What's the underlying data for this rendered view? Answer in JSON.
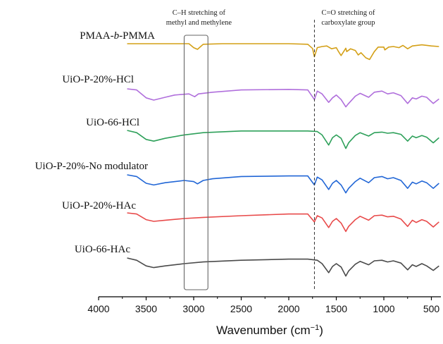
{
  "chart_data": {
    "type": "line",
    "xlabel_main": "Wavenumber (cm",
    "xlabel_sup": "−1",
    "xlabel_end": ")",
    "xlim": [
      4000,
      400
    ],
    "x_reversed": true,
    "xticks": [
      4000,
      3500,
      3000,
      2500,
      2000,
      1500,
      1000,
      500
    ],
    "y_axis_shown": false,
    "annotations": [
      {
        "lines": [
          "C–H stretching of",
          "methyl and methylene"
        ],
        "range": [
          3100,
          2850
        ],
        "shape": "rectangle"
      },
      {
        "lines": [
          "C=O stretching of",
          "carboxylate group"
        ],
        "at": 1730,
        "shape": "dashed-line"
      }
    ],
    "series": [
      {
        "name": "PMAA-b-PMMA",
        "name_parts": [
          "PMAA-",
          "b",
          "-PMMA"
        ],
        "color": "#d4a017",
        "points": [
          [
            3700,
            0.0
          ],
          [
            3600,
            0.0
          ],
          [
            3200,
            0.0
          ],
          [
            3050,
            0.0
          ],
          [
            3000,
            0.7
          ],
          [
            2960,
            1.0
          ],
          [
            2900,
            0.1
          ],
          [
            2700,
            0.0
          ],
          [
            2000,
            0.0
          ],
          [
            1800,
            0.1
          ],
          [
            1750,
            0.85
          ],
          [
            1730,
            2.3
          ],
          [
            1700,
            0.7
          ],
          [
            1650,
            0.5
          ],
          [
            1600,
            0.4
          ],
          [
            1550,
            0.9
          ],
          [
            1500,
            0.7
          ],
          [
            1480,
            1.3
          ],
          [
            1450,
            2.1
          ],
          [
            1400,
            0.8
          ],
          [
            1390,
            1.4
          ],
          [
            1350,
            0.9
          ],
          [
            1300,
            1.2
          ],
          [
            1270,
            2.0
          ],
          [
            1240,
            1.6
          ],
          [
            1190,
            2.5
          ],
          [
            1150,
            2.8
          ],
          [
            1100,
            1.4
          ],
          [
            1060,
            0.6
          ],
          [
            1000,
            0.6
          ],
          [
            990,
            1.1
          ],
          [
            950,
            0.6
          ],
          [
            900,
            0.5
          ],
          [
            840,
            0.7
          ],
          [
            800,
            0.3
          ],
          [
            750,
            0.9
          ],
          [
            700,
            0.4
          ],
          [
            600,
            0.2
          ],
          [
            500,
            0.4
          ],
          [
            420,
            0.5
          ]
        ]
      },
      {
        "name": "UiO-P-20%-HCl",
        "color": "#b06fdc",
        "points": [
          [
            3700,
            0.0
          ],
          [
            3600,
            0.2
          ],
          [
            3500,
            1.6
          ],
          [
            3420,
            2.0
          ],
          [
            3300,
            1.5
          ],
          [
            3200,
            1.1
          ],
          [
            3050,
            0.9
          ],
          [
            2990,
            1.4
          ],
          [
            2950,
            0.9
          ],
          [
            2800,
            0.6
          ],
          [
            2500,
            0.2
          ],
          [
            2000,
            0.1
          ],
          [
            1800,
            0.2
          ],
          [
            1730,
            1.9
          ],
          [
            1700,
            0.4
          ],
          [
            1650,
            0.9
          ],
          [
            1580,
            2.4
          ],
          [
            1540,
            1.6
          ],
          [
            1500,
            1.1
          ],
          [
            1450,
            1.9
          ],
          [
            1400,
            3.2
          ],
          [
            1370,
            2.6
          ],
          [
            1300,
            1.3
          ],
          [
            1250,
            0.8
          ],
          [
            1160,
            1.5
          ],
          [
            1100,
            0.6
          ],
          [
            1020,
            0.4
          ],
          [
            960,
            0.9
          ],
          [
            900,
            0.7
          ],
          [
            820,
            1.2
          ],
          [
            750,
            2.6
          ],
          [
            700,
            1.6
          ],
          [
            660,
            1.8
          ],
          [
            600,
            1.3
          ],
          [
            550,
            1.5
          ],
          [
            480,
            2.6
          ],
          [
            420,
            1.8
          ]
        ]
      },
      {
        "name": "UiO-66-HCl",
        "color": "#2ea05a",
        "points": [
          [
            3700,
            0.0
          ],
          [
            3600,
            0.4
          ],
          [
            3500,
            1.6
          ],
          [
            3420,
            1.9
          ],
          [
            3300,
            1.4
          ],
          [
            3100,
            0.8
          ],
          [
            2900,
            0.4
          ],
          [
            2500,
            0.1
          ],
          [
            2000,
            0.1
          ],
          [
            1800,
            0.1
          ],
          [
            1700,
            0.2
          ],
          [
            1650,
            0.8
          ],
          [
            1580,
            2.6
          ],
          [
            1540,
            1.3
          ],
          [
            1500,
            0.8
          ],
          [
            1450,
            1.4
          ],
          [
            1400,
            3.2
          ],
          [
            1370,
            2.2
          ],
          [
            1300,
            0.9
          ],
          [
            1250,
            0.4
          ],
          [
            1160,
            1.0
          ],
          [
            1100,
            0.4
          ],
          [
            1020,
            0.3
          ],
          [
            960,
            0.5
          ],
          [
            900,
            0.4
          ],
          [
            820,
            0.7
          ],
          [
            750,
            1.9
          ],
          [
            700,
            1.0
          ],
          [
            660,
            1.3
          ],
          [
            600,
            0.9
          ],
          [
            550,
            1.2
          ],
          [
            480,
            2.2
          ],
          [
            420,
            1.3
          ]
        ]
      },
      {
        "name": "UiO-P-20%-No modulator",
        "color": "#2166d6",
        "points": [
          [
            3700,
            0.0
          ],
          [
            3600,
            0.3
          ],
          [
            3500,
            1.5
          ],
          [
            3420,
            1.8
          ],
          [
            3300,
            1.4
          ],
          [
            3100,
            1.0
          ],
          [
            3000,
            1.2
          ],
          [
            2960,
            1.6
          ],
          [
            2900,
            1.0
          ],
          [
            2800,
            0.7
          ],
          [
            2500,
            0.3
          ],
          [
            2000,
            0.2
          ],
          [
            1800,
            0.2
          ],
          [
            1730,
            1.8
          ],
          [
            1700,
            0.4
          ],
          [
            1650,
            0.9
          ],
          [
            1580,
            2.6
          ],
          [
            1540,
            1.5
          ],
          [
            1500,
            1.0
          ],
          [
            1450,
            1.8
          ],
          [
            1400,
            3.2
          ],
          [
            1370,
            2.4
          ],
          [
            1300,
            1.2
          ],
          [
            1250,
            0.6
          ],
          [
            1160,
            1.4
          ],
          [
            1100,
            0.5
          ],
          [
            1020,
            0.3
          ],
          [
            960,
            0.7
          ],
          [
            900,
            0.5
          ],
          [
            820,
            1.0
          ],
          [
            750,
            2.4
          ],
          [
            700,
            1.3
          ],
          [
            660,
            1.6
          ],
          [
            600,
            1.1
          ],
          [
            550,
            1.4
          ],
          [
            480,
            2.4
          ],
          [
            420,
            1.5
          ]
        ]
      },
      {
        "name": "UiO-P-20%-HAc",
        "color": "#e84a4a",
        "points": [
          [
            3700,
            0.0
          ],
          [
            3600,
            0.2
          ],
          [
            3500,
            1.2
          ],
          [
            3420,
            1.5
          ],
          [
            3300,
            1.3
          ],
          [
            3100,
            1.0
          ],
          [
            2900,
            0.8
          ],
          [
            2500,
            0.5
          ],
          [
            2000,
            0.2
          ],
          [
            1800,
            0.2
          ],
          [
            1730,
            1.6
          ],
          [
            1700,
            0.5
          ],
          [
            1650,
            0.9
          ],
          [
            1580,
            2.6
          ],
          [
            1540,
            1.5
          ],
          [
            1500,
            1.0
          ],
          [
            1450,
            1.8
          ],
          [
            1400,
            3.3
          ],
          [
            1370,
            2.4
          ],
          [
            1300,
            1.2
          ],
          [
            1250,
            0.6
          ],
          [
            1160,
            1.3
          ],
          [
            1100,
            0.5
          ],
          [
            1020,
            0.4
          ],
          [
            960,
            0.7
          ],
          [
            900,
            0.6
          ],
          [
            820,
            1.1
          ],
          [
            750,
            2.4
          ],
          [
            700,
            1.3
          ],
          [
            660,
            1.7
          ],
          [
            600,
            1.2
          ],
          [
            550,
            1.5
          ],
          [
            480,
            2.5
          ],
          [
            420,
            1.6
          ]
        ]
      },
      {
        "name": "UiO-66-HAc",
        "color": "#4a4a4a",
        "points": [
          [
            3700,
            0.0
          ],
          [
            3600,
            0.4
          ],
          [
            3500,
            1.4
          ],
          [
            3420,
            1.7
          ],
          [
            3300,
            1.4
          ],
          [
            3100,
            1.0
          ],
          [
            2900,
            0.7
          ],
          [
            2500,
            0.4
          ],
          [
            2000,
            0.2
          ],
          [
            1800,
            0.2
          ],
          [
            1700,
            0.4
          ],
          [
            1650,
            1.0
          ],
          [
            1580,
            2.6
          ],
          [
            1540,
            1.5
          ],
          [
            1500,
            1.0
          ],
          [
            1450,
            1.6
          ],
          [
            1400,
            3.2
          ],
          [
            1370,
            2.3
          ],
          [
            1300,
            1.1
          ],
          [
            1250,
            0.6
          ],
          [
            1160,
            1.2
          ],
          [
            1100,
            0.5
          ],
          [
            1020,
            0.4
          ],
          [
            960,
            0.7
          ],
          [
            900,
            0.5
          ],
          [
            820,
            0.9
          ],
          [
            750,
            2.1
          ],
          [
            700,
            1.2
          ],
          [
            660,
            1.5
          ],
          [
            600,
            1.0
          ],
          [
            550,
            1.4
          ],
          [
            480,
            2.2
          ],
          [
            420,
            1.4
          ]
        ]
      }
    ]
  }
}
